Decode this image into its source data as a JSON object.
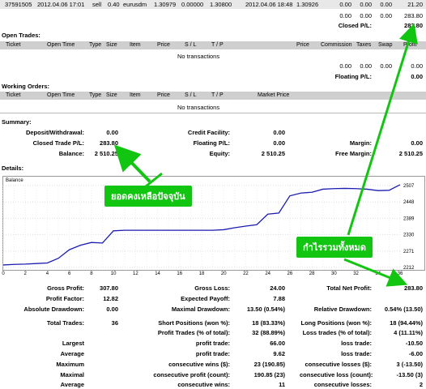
{
  "top_row": {
    "ticket": "37591505",
    "open_time": "2012.04.06 17:01",
    "type": "sell",
    "size": "0.40",
    "item": "eurusdm",
    "price": "1.30979",
    "sl": "0.00000",
    "tp": "1.30800",
    "close_time": "2012.04.06 18:48",
    "close_price": "1.30926",
    "commission": "0.00",
    "taxes": "0.00",
    "swap": "0.00",
    "profit": "21.20"
  },
  "closed_totals": {
    "commission": "0.00",
    "taxes": "0.00",
    "swap": "0.00",
    "profit": "283.80",
    "label": "Closed P/L:",
    "value": "283.80"
  },
  "open_trades": {
    "title": "Open Trades:",
    "headers": [
      "Ticket",
      "Open Time",
      "Type",
      "Size",
      "Item",
      "Price",
      "S / L",
      "T / P",
      "Price",
      "Commission",
      "Taxes",
      "Swap",
      "Profit"
    ],
    "empty": "No transactions",
    "totals": [
      "0.00",
      "0.00",
      "0.00",
      "0.00"
    ],
    "floating_label": "Floating P/L:",
    "floating_value": "0.00"
  },
  "working_orders": {
    "title": "Working Orders:",
    "headers": [
      "Ticket",
      "Open Time",
      "Type",
      "Size",
      "Item",
      "Price",
      "S / L",
      "T / P",
      "Market Price"
    ],
    "empty": "No transactions",
    "margin_label": "Margin:",
    "margin_value": "0.00"
  },
  "summary": {
    "title": "Summary:",
    "deposit_label": "Deposit/Withdrawal:",
    "deposit": "0.00",
    "credit_label": "Credit Facility:",
    "credit": "0.00",
    "closed_label": "Closed Trade P/L:",
    "closed": "283.80",
    "floating_label": "Floating P/L:",
    "floating": "0.00",
    "margin_label": "Margin:",
    "margin": "0.00",
    "balance_label": "Balance:",
    "balance": "2 510.25",
    "equity_label": "Equity:",
    "equity": "2 510.25",
    "free_margin_label": "Free Margin:",
    "free_margin": "2 510.25"
  },
  "details_title": "Details:",
  "chart_data": {
    "type": "line",
    "title": "Balance",
    "x": [
      0,
      1,
      2,
      3,
      4,
      5,
      6,
      7,
      8,
      9,
      10,
      11,
      12,
      13,
      14,
      15,
      16,
      17,
      18,
      19,
      20,
      21,
      22,
      23,
      24,
      25,
      26,
      27,
      28,
      29,
      30,
      31,
      32,
      33,
      34,
      35,
      36
    ],
    "x_ticks": [
      "0",
      "2",
      "4",
      "6",
      "8",
      "10",
      "12",
      "14",
      "16",
      "18",
      "20",
      "22",
      "24",
      "26",
      "28",
      "30",
      "32",
      "34",
      "36"
    ],
    "y_ticks": [
      "2507",
      "2448",
      "2389",
      "2330",
      "2271",
      "2212"
    ],
    "ylim": [
      2212,
      2507
    ],
    "series": [
      {
        "values": [
          2221,
          2223,
          2224,
          2226,
          2228,
          2245,
          2276,
          2292,
          2302,
          2300,
          2344,
          2346,
          2346,
          2346,
          2346,
          2346,
          2346,
          2346,
          2346,
          2346,
          2348,
          2355,
          2361,
          2366,
          2404,
          2408,
          2470,
          2480,
          2483,
          2494,
          2496,
          2497,
          2496,
          2494,
          2489,
          2490,
          2510
        ]
      }
    ],
    "line_color": "#1c1cb0"
  },
  "callouts": {
    "balance_thai": "ยอดคงเหลือปัจจุบัน",
    "total_thai": "กำไรรวมทั้งหมด",
    "color": "#11c511"
  },
  "stats": {
    "gross_profit_label": "Gross Profit:",
    "gross_profit": "307.80",
    "gross_loss_label": "Gross Loss:",
    "gross_loss": "24.00",
    "net_label": "Total Net Profit:",
    "net": "283.80",
    "pf_label": "Profit Factor:",
    "pf": "12.82",
    "ep_label": "Expected Payoff:",
    "ep": "7.88",
    "abs_dd_label": "Absolute Drawdown:",
    "abs_dd": "0.00",
    "max_dd_label": "Maximal Drawdown:",
    "max_dd": "13.50 (0.54%)",
    "rel_dd_label": "Relative Drawdown:",
    "rel_dd": "0.54% (13.50)",
    "total_trades_label": "Total Trades:",
    "total_trades": "36",
    "short_label": "Short Positions (won %):",
    "short": "18 (83.33%)",
    "long_label": "Long Positions (won %):",
    "long": "18 (94.44%)",
    "pt_label": "Profit Trades (% of total):",
    "pt": "32 (88.89%)",
    "lt_label": "Loss trades (% of total):",
    "lt": "4 (11.11%)",
    "largest": "Largest",
    "lp_label": "profit trade:",
    "lp": "66.00",
    "ll_label": "loss trade:",
    "ll": "-10.50",
    "average": "Average",
    "ap_label": "profit trade:",
    "ap": "9.62",
    "al_label": "loss trade:",
    "al": "-6.00",
    "maximum": "Maximum",
    "mcw_label": "consecutive wins ($):",
    "mcw": "23 (190.85)",
    "mcl_label": "consecutive losses ($):",
    "mcl": "3 (-13.50)",
    "maximal": "Maximal",
    "mcp_label": "consecutive profit (count):",
    "mcp": "190.85 (23)",
    "mclc_label": "consecutive loss (count):",
    "mclc": "-13.50 (3)",
    "average2": "Average",
    "acw_label": "consecutive wins:",
    "acw": "11",
    "acl_label": "consecutive losses:",
    "acl": "2"
  }
}
